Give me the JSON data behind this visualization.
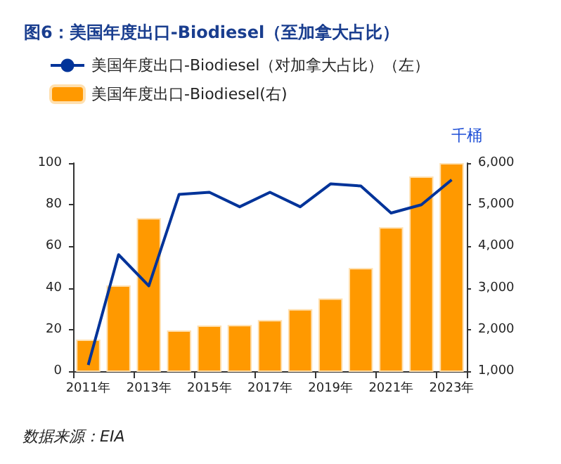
{
  "chart_data": {
    "type": "bar",
    "title": "图6：美国年度出口-Biodiesel（至加拿大占比）",
    "categories": [
      "2011年",
      null,
      "2013年",
      null,
      "2015年",
      null,
      "2017年",
      null,
      "2019年",
      null,
      "2021年",
      null,
      "2023年"
    ],
    "series": [
      {
        "name": "美国年度出口-Biodiesel（对加拿大占比）（左）",
        "type": "line",
        "color": "#003399",
        "values": [
          3,
          56,
          41,
          85,
          86,
          79,
          86,
          79,
          90,
          89,
          76,
          80,
          92
        ]
      },
      {
        "name": "美国年度出口-Biodiesel(右)",
        "axis": "y2",
        "color": "#ff9900",
        "values": [
          1760,
          3060,
          4680,
          1980,
          2100,
          2110,
          2230,
          2490,
          2750,
          3480,
          4460,
          5680,
          6000
        ]
      }
    ],
    "ylim": [
      0,
      100
    ],
    "yticks": [
      0,
      20,
      40,
      60,
      80,
      100
    ],
    "y2lim": [
      1000,
      6000
    ],
    "y2ticks": [
      {
        "value": 1000,
        "label": "1,000"
      },
      {
        "value": 2000,
        "label": "2,000"
      },
      {
        "value": 3000,
        "label": "3,000"
      },
      {
        "value": 4000,
        "label": "4,000"
      },
      {
        "value": 5000,
        "label": "5,000"
      },
      {
        "value": 6000,
        "label": "6,000"
      }
    ],
    "y2label": "千桶",
    "legend": "top left",
    "grid": false,
    "marker": "none",
    "line_style": "solid",
    "annotations": [
      "数据来源：EIA"
    ]
  }
}
